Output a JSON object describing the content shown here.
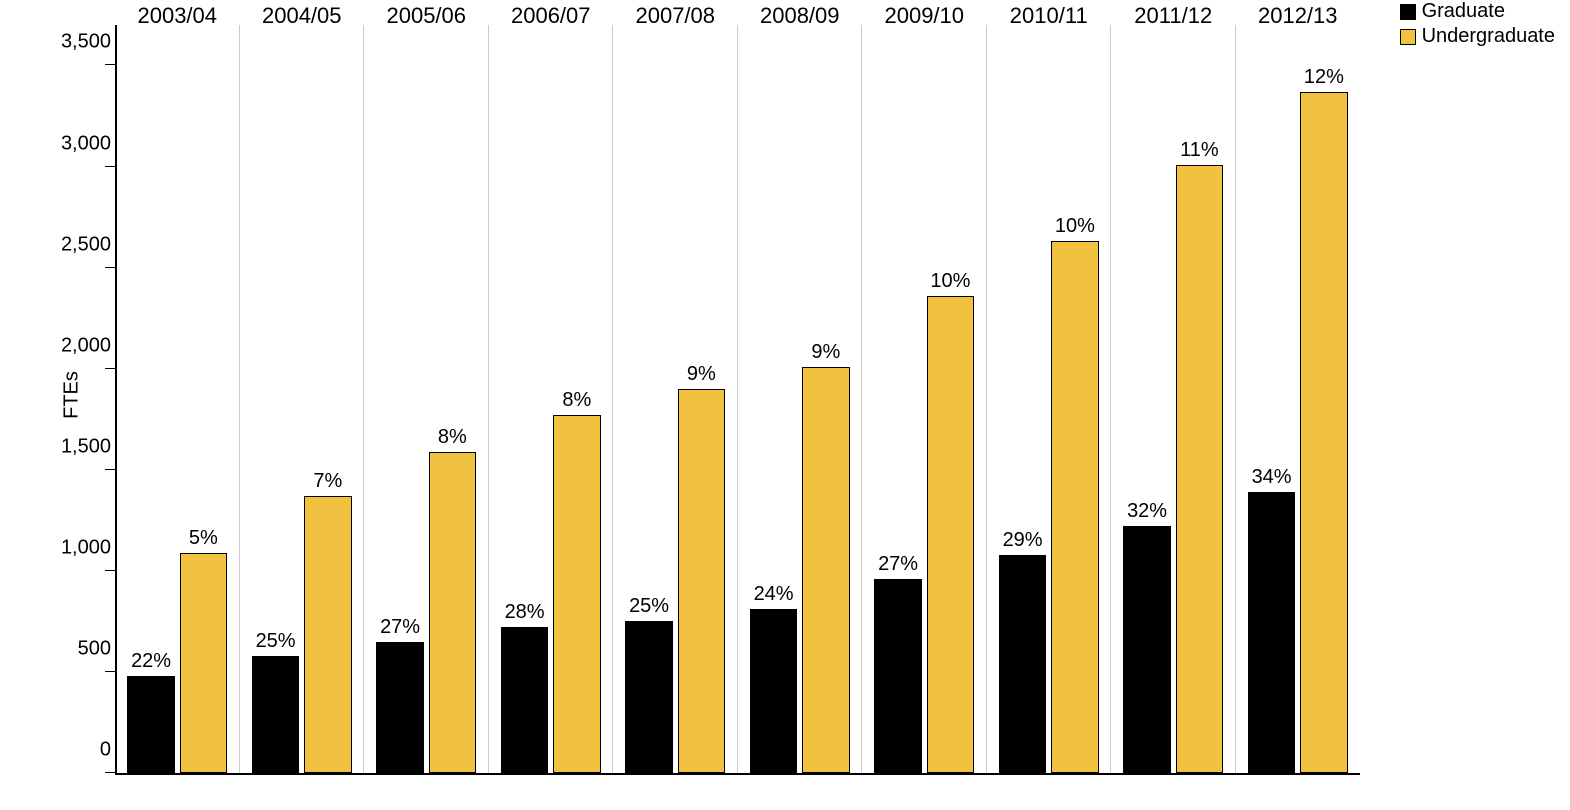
{
  "chart": {
    "type": "bar",
    "ylabel": "FTEs",
    "label_fontsize": 20,
    "category_label_fontsize": 22,
    "bar_label_fontsize": 20,
    "ylim": [
      0,
      3700
    ],
    "yticks": [
      0,
      500,
      1000,
      1500,
      2000,
      2500,
      3000,
      3500
    ],
    "ytick_labels": [
      "0",
      "500",
      "1,000",
      "1,500",
      "2,000",
      "2,500",
      "3,000",
      "3,500"
    ],
    "background_color": "#ffffff",
    "grid_color": "#cccccc",
    "axis_color": "#000000",
    "categories": [
      "2003/04",
      "2004/05",
      "2005/06",
      "2006/07",
      "2007/08",
      "2008/09",
      "2009/10",
      "2010/11",
      "2011/12",
      "2012/13"
    ],
    "series": [
      {
        "name": "Graduate",
        "color": "#000000",
        "values": [
          480,
          580,
          650,
          720,
          750,
          810,
          960,
          1080,
          1220,
          1390
        ],
        "labels": [
          "22%",
          "25%",
          "27%",
          "28%",
          "25%",
          "24%",
          "27%",
          "29%",
          "32%",
          "34%"
        ]
      },
      {
        "name": "Undergraduate",
        "color": "#f1c240",
        "values": [
          1090,
          1370,
          1590,
          1770,
          1900,
          2010,
          2360,
          2630,
          3010,
          3370
        ],
        "labels": [
          "5%",
          "7%",
          "8%",
          "8%",
          "9%",
          "9%",
          "10%",
          "10%",
          "11%",
          "12%"
        ]
      }
    ],
    "bar_width_ratio": 0.38,
    "bar_gap_ratio": 0.04,
    "legend": {
      "position": "top-right",
      "items": [
        {
          "label": "Graduate",
          "color": "#000000"
        },
        {
          "label": "Undergraduate",
          "color": "#f1c240"
        }
      ]
    }
  }
}
